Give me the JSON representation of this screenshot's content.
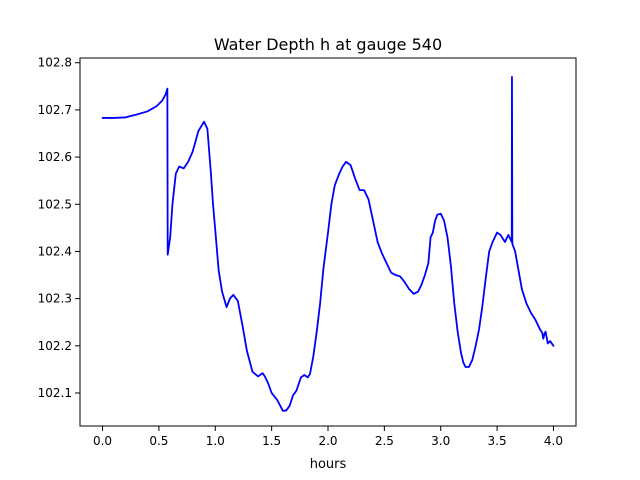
{
  "chart_data": {
    "type": "line",
    "title": "Water Depth h at gauge 540",
    "xlabel": "hours",
    "ylabel": "",
    "xlim": [
      -0.2,
      4.2
    ],
    "ylim": [
      102.03,
      102.81
    ],
    "xticks": [
      {
        "value": 0.0,
        "label": "0.0"
      },
      {
        "value": 0.5,
        "label": "0.5"
      },
      {
        "value": 1.0,
        "label": "1.0"
      },
      {
        "value": 1.5,
        "label": "1.5"
      },
      {
        "value": 2.0,
        "label": "2.0"
      },
      {
        "value": 2.5,
        "label": "2.5"
      },
      {
        "value": 3.0,
        "label": "3.0"
      },
      {
        "value": 3.5,
        "label": "3.5"
      },
      {
        "value": 4.0,
        "label": "4.0"
      }
    ],
    "yticks": [
      {
        "value": 102.1,
        "label": "102.1"
      },
      {
        "value": 102.2,
        "label": "102.2"
      },
      {
        "value": 102.3,
        "label": "102.3"
      },
      {
        "value": 102.4,
        "label": "102.4"
      },
      {
        "value": 102.5,
        "label": "102.5"
      },
      {
        "value": 102.6,
        "label": "102.6"
      },
      {
        "value": 102.7,
        "label": "102.7"
      },
      {
        "value": 102.8,
        "label": "102.8"
      }
    ],
    "grid": false,
    "legend": "none",
    "series": [
      {
        "color": "#0000ff",
        "x": [
          0.0,
          0.1,
          0.2,
          0.3,
          0.4,
          0.48,
          0.53,
          0.56,
          0.575,
          0.578,
          0.6,
          0.62,
          0.65,
          0.68,
          0.72,
          0.76,
          0.8,
          0.85,
          0.9,
          0.93,
          0.96,
          0.98,
          1.0,
          1.03,
          1.06,
          1.1,
          1.13,
          1.16,
          1.2,
          1.24,
          1.28,
          1.33,
          1.38,
          1.42,
          1.44,
          1.47,
          1.5,
          1.55,
          1.6,
          1.63,
          1.66,
          1.69,
          1.72,
          1.76,
          1.79,
          1.82,
          1.84,
          1.87,
          1.9,
          1.93,
          1.96,
          2.0,
          2.03,
          2.06,
          2.1,
          2.13,
          2.16,
          2.2,
          2.24,
          2.28,
          2.32,
          2.36,
          2.4,
          2.44,
          2.48,
          2.52,
          2.56,
          2.6,
          2.64,
          2.68,
          2.72,
          2.76,
          2.8,
          2.83,
          2.86,
          2.89,
          2.91,
          2.93,
          2.95,
          2.97,
          3.0,
          3.03,
          3.06,
          3.09,
          3.12,
          3.15,
          3.18,
          3.2,
          3.22,
          3.25,
          3.28,
          3.31,
          3.34,
          3.37,
          3.4,
          3.43,
          3.46,
          3.5,
          3.53,
          3.57,
          3.6,
          3.63,
          3.632,
          3.635,
          3.637,
          3.66,
          3.69,
          3.72,
          3.76,
          3.8,
          3.84,
          3.86,
          3.88,
          3.9,
          3.91,
          3.92,
          3.93,
          3.95,
          3.97,
          4.0
        ],
        "y": [
          102.683,
          102.683,
          102.684,
          102.69,
          102.697,
          102.708,
          102.72,
          102.733,
          102.745,
          102.393,
          102.43,
          102.5,
          102.565,
          102.58,
          102.576,
          102.59,
          102.612,
          102.655,
          102.675,
          102.66,
          102.57,
          102.5,
          102.445,
          102.36,
          102.315,
          102.282,
          102.3,
          102.308,
          102.295,
          102.245,
          102.19,
          102.145,
          102.135,
          102.142,
          102.135,
          102.12,
          102.1,
          102.085,
          102.062,
          102.063,
          102.073,
          102.095,
          102.105,
          102.133,
          102.138,
          102.133,
          102.14,
          102.178,
          102.23,
          102.29,
          102.365,
          102.44,
          102.5,
          102.54,
          102.565,
          102.58,
          102.59,
          102.583,
          102.555,
          102.53,
          102.53,
          102.51,
          102.465,
          102.42,
          102.395,
          102.375,
          102.355,
          102.35,
          102.347,
          102.335,
          102.32,
          102.31,
          102.315,
          102.33,
          102.35,
          102.375,
          102.43,
          102.44,
          102.465,
          102.478,
          102.48,
          102.465,
          102.43,
          102.37,
          102.29,
          102.23,
          102.185,
          102.165,
          102.155,
          102.155,
          102.17,
          102.2,
          102.235,
          102.285,
          102.345,
          102.4,
          102.42,
          102.44,
          102.435,
          102.42,
          102.435,
          102.42,
          102.77,
          102.42,
          102.415,
          102.4,
          102.36,
          102.32,
          102.29,
          102.27,
          102.255,
          102.245,
          102.235,
          102.228,
          102.215,
          102.225,
          102.23,
          102.205,
          102.21,
          102.2
        ]
      }
    ]
  }
}
